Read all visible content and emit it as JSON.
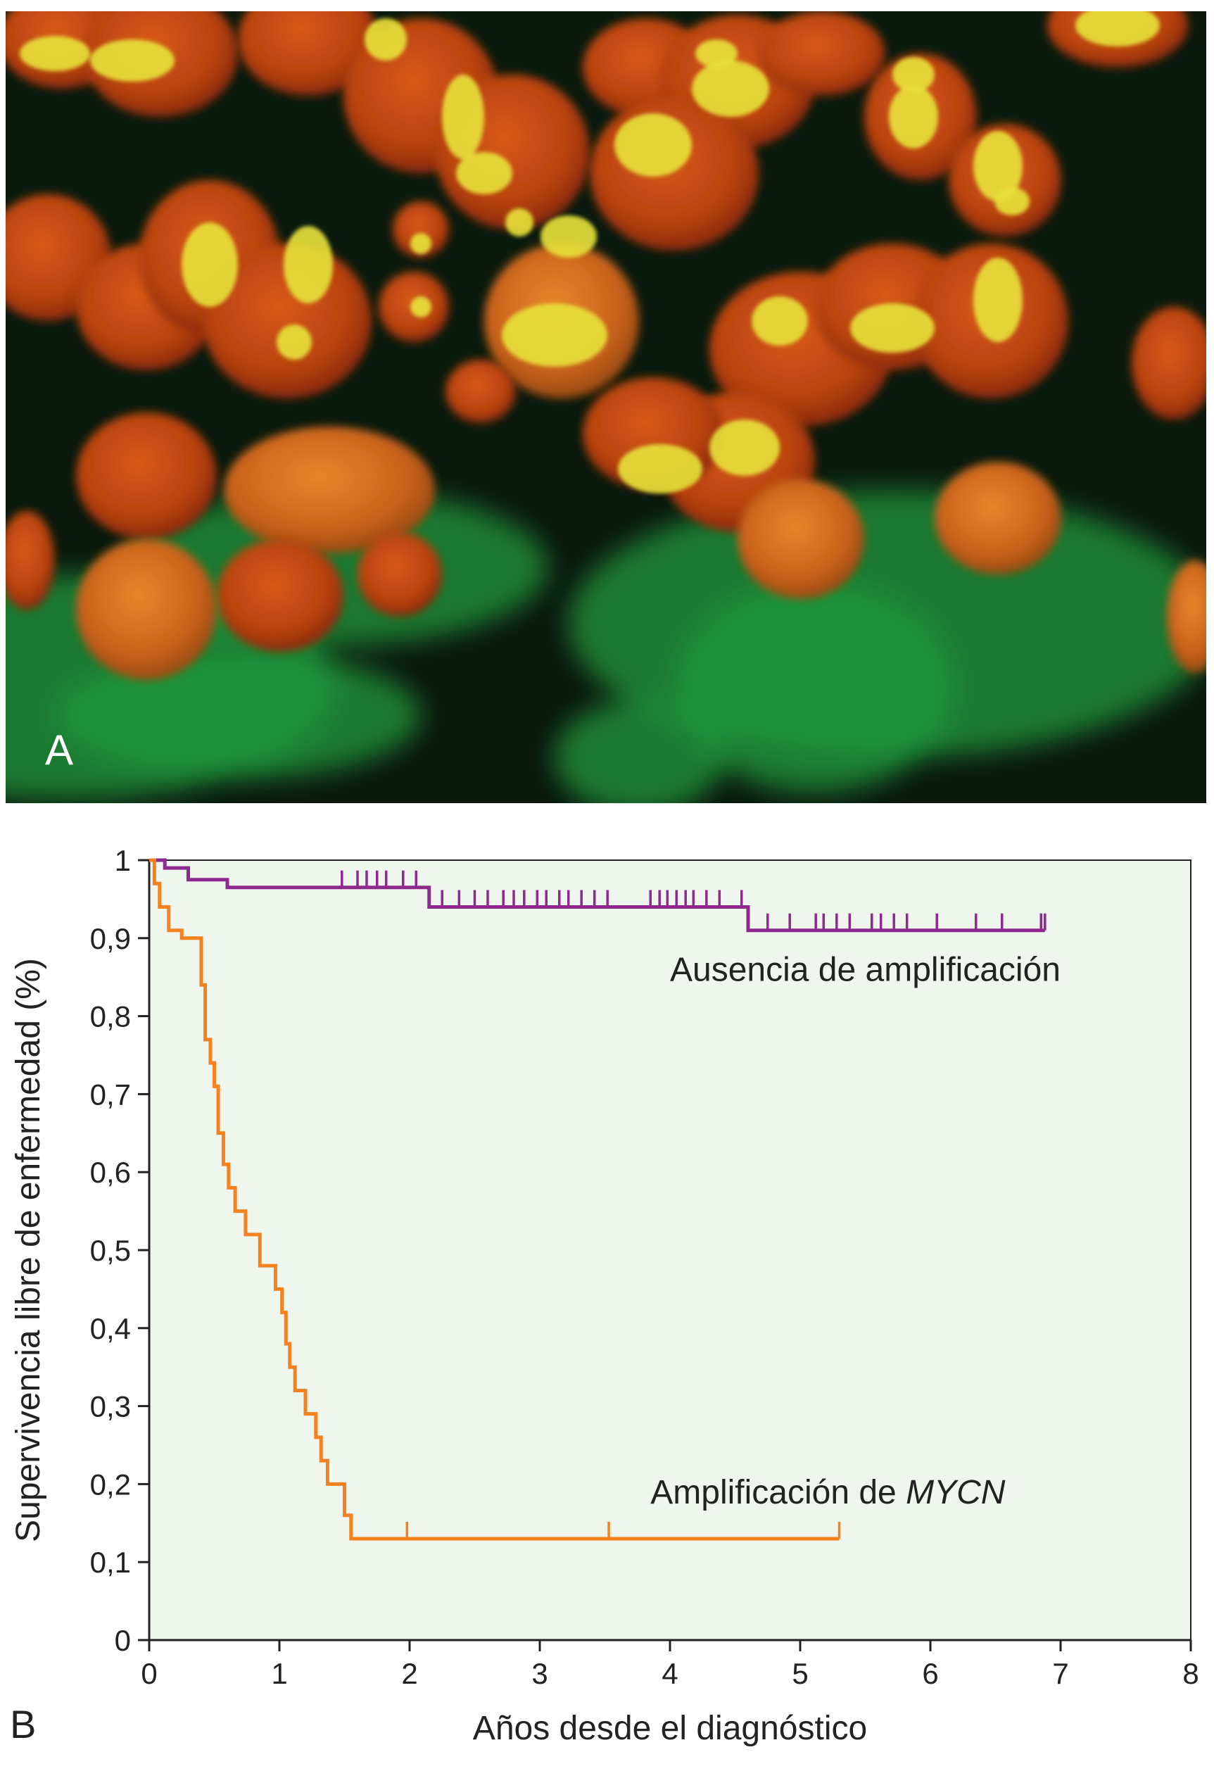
{
  "panel_a": {
    "label": "A",
    "colors": {
      "background": "#0b1a0e",
      "nucleus": "#c64a14",
      "signal": "#e8e23a",
      "cytoplasm": "#1f9a3e"
    }
  },
  "panel_b": {
    "label": "B",
    "colors": {
      "plot_bg": "#eef6ee",
      "axis": "#222222"
    }
  },
  "chart_data": {
    "type": "line",
    "subtype": "kaplan-meier step",
    "title": "",
    "xlabel": "Años desde el diagnóstico",
    "ylabel": "Supervivencia libre de enfermedad (%)",
    "xlim": [
      0,
      8
    ],
    "ylim": [
      0,
      1
    ],
    "xticks": [
      {
        "value": 0,
        "label": "0"
      },
      {
        "value": 1,
        "label": "1"
      },
      {
        "value": 2,
        "label": "2"
      },
      {
        "value": 3,
        "label": "3"
      },
      {
        "value": 4,
        "label": "4"
      },
      {
        "value": 5,
        "label": "5"
      },
      {
        "value": 6,
        "label": "6"
      },
      {
        "value": 7,
        "label": "7"
      },
      {
        "value": 8,
        "label": "8"
      }
    ],
    "yticks": [
      {
        "value": 0,
        "label": "0"
      },
      {
        "value": 0.1,
        "label": "0,1"
      },
      {
        "value": 0.2,
        "label": "0,2"
      },
      {
        "value": 0.3,
        "label": "0,3"
      },
      {
        "value": 0.4,
        "label": "0,4"
      },
      {
        "value": 0.5,
        "label": "0,5"
      },
      {
        "value": 0.6,
        "label": "0,6"
      },
      {
        "value": 0.7,
        "label": "0,7"
      },
      {
        "value": 0.8,
        "label": "0,8"
      },
      {
        "value": 0.9,
        "label": "0,9"
      },
      {
        "value": 1,
        "label": "1"
      }
    ],
    "grid": false,
    "series": [
      {
        "name": "Ausencia de amplificación",
        "name_suffix": "",
        "color": "#8e2a8e",
        "steps": [
          {
            "x": 0,
            "y": 1.0
          },
          {
            "x": 0.12,
            "y": 0.99
          },
          {
            "x": 0.3,
            "y": 0.975
          },
          {
            "x": 0.6,
            "y": 0.965
          },
          {
            "x": 2.15,
            "y": 0.94
          },
          {
            "x": 4.6,
            "y": 0.91
          },
          {
            "x": 6.88,
            "y": 0.91
          }
        ],
        "censored": [
          1.48,
          1.6,
          1.67,
          1.75,
          1.82,
          1.95,
          2.05,
          2.25,
          2.38,
          2.5,
          2.6,
          2.72,
          2.8,
          2.88,
          2.98,
          3.05,
          3.15,
          3.22,
          3.32,
          3.42,
          3.52,
          3.85,
          3.92,
          3.98,
          4.05,
          4.12,
          4.18,
          4.28,
          4.38,
          4.55,
          4.75,
          4.92,
          5.12,
          5.18,
          5.28,
          5.38,
          5.55,
          5.62,
          5.72,
          5.82,
          6.05,
          6.35,
          6.55,
          6.85,
          6.88
        ]
      },
      {
        "name": "Amplificación de ",
        "name_suffix": "MYCN",
        "color": "#f5821f",
        "steps": [
          {
            "x": 0,
            "y": 1.0
          },
          {
            "x": 0.04,
            "y": 0.97
          },
          {
            "x": 0.08,
            "y": 0.94
          },
          {
            "x": 0.15,
            "y": 0.91
          },
          {
            "x": 0.25,
            "y": 0.9
          },
          {
            "x": 0.4,
            "y": 0.84
          },
          {
            "x": 0.43,
            "y": 0.77
          },
          {
            "x": 0.47,
            "y": 0.74
          },
          {
            "x": 0.5,
            "y": 0.71
          },
          {
            "x": 0.53,
            "y": 0.65
          },
          {
            "x": 0.57,
            "y": 0.61
          },
          {
            "x": 0.61,
            "y": 0.58
          },
          {
            "x": 0.66,
            "y": 0.55
          },
          {
            "x": 0.74,
            "y": 0.52
          },
          {
            "x": 0.85,
            "y": 0.48
          },
          {
            "x": 0.97,
            "y": 0.45
          },
          {
            "x": 1.02,
            "y": 0.42
          },
          {
            "x": 1.05,
            "y": 0.38
          },
          {
            "x": 1.08,
            "y": 0.35
          },
          {
            "x": 1.12,
            "y": 0.32
          },
          {
            "x": 1.2,
            "y": 0.29
          },
          {
            "x": 1.28,
            "y": 0.26
          },
          {
            "x": 1.32,
            "y": 0.23
          },
          {
            "x": 1.37,
            "y": 0.2
          },
          {
            "x": 1.5,
            "y": 0.16
          },
          {
            "x": 1.55,
            "y": 0.13
          },
          {
            "x": 5.3,
            "y": 0.13
          }
        ],
        "censored": [
          1.98,
          3.53,
          5.3
        ]
      }
    ]
  }
}
